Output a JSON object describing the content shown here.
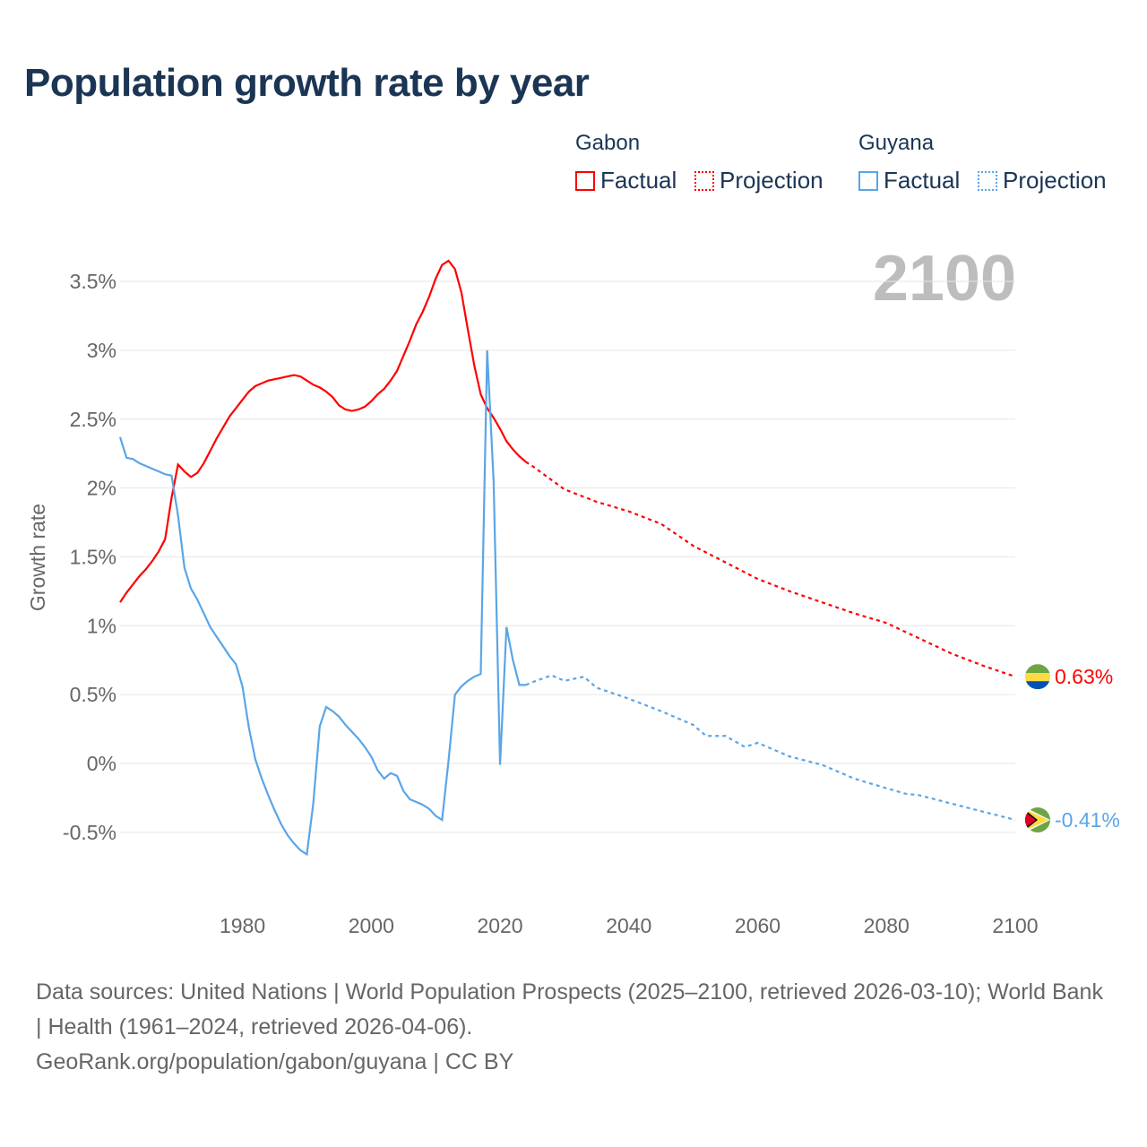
{
  "title": "Population growth rate by year",
  "legend": {
    "groups": [
      {
        "name": "Gabon",
        "factual": "Factual",
        "projection": "Projection",
        "color": "#ff0000"
      },
      {
        "name": "Guyana",
        "factual": "Factual",
        "projection": "Projection",
        "color": "#5aa5e8"
      }
    ]
  },
  "year_display": "2100",
  "footer": {
    "sources": "Data sources: United Nations | World Population Prospects (2025–2100, retrieved 2026-03-10); World Bank | Health (1961–2024, retrieved 2026-04-06).",
    "credit": "GeoRank.org/population/gabon/guyana | CC BY"
  },
  "chart_data": {
    "type": "line",
    "title": "Population growth rate by year",
    "xlabel": "",
    "ylabel": "Growth rate",
    "xlim": [
      1961,
      2100
    ],
    "ylim": [
      -0.8,
      3.7
    ],
    "x_ticks": [
      1980,
      2000,
      2020,
      2040,
      2060,
      2080,
      2100
    ],
    "x_tick_labels": [
      "1980",
      "2000",
      "2020",
      "2040",
      "2060",
      "2080",
      "2100"
    ],
    "y_ticks": [
      -0.5,
      0,
      0.5,
      1,
      1.5,
      2,
      2.5,
      3,
      3.5
    ],
    "y_tick_labels": [
      "-0.5%",
      "0%",
      "0.5%",
      "1%",
      "1.5%",
      "2%",
      "2.5%",
      "3%",
      "3.5%"
    ],
    "grid": true,
    "series": [
      {
        "name": "Gabon",
        "color": "#ff0000",
        "end_label": "0.63%",
        "factual": {
          "start": 1961,
          "values": [
            1.17,
            1.24,
            1.3,
            1.36,
            1.41,
            1.47,
            1.54,
            1.63,
            1.93,
            2.17,
            2.12,
            2.08,
            2.11,
            2.18,
            2.27,
            2.36,
            2.44,
            2.52,
            2.58,
            2.64,
            2.7,
            2.74,
            2.76,
            2.78,
            2.79,
            2.8,
            2.81,
            2.82,
            2.81,
            2.78,
            2.75,
            2.73,
            2.7,
            2.66,
            2.6,
            2.57,
            2.56,
            2.57,
            2.59,
            2.63,
            2.68,
            2.72,
            2.78,
            2.85,
            2.96,
            3.07,
            3.19,
            3.28,
            3.39,
            3.52,
            3.62,
            3.65,
            3.59,
            3.42,
            3.15,
            2.89,
            2.68,
            2.58,
            2.51,
            2.43,
            2.34,
            2.28,
            2.23,
            2.19
          ]
        },
        "projection": {
          "x": [
            2024,
            2025,
            2030,
            2035,
            2040,
            2045,
            2050,
            2055,
            2060,
            2065,
            2070,
            2075,
            2080,
            2085,
            2090,
            2095,
            2100
          ],
          "values": [
            2.19,
            2.16,
            1.99,
            1.9,
            1.83,
            1.74,
            1.58,
            1.46,
            1.34,
            1.25,
            1.17,
            1.09,
            1.02,
            0.91,
            0.8,
            0.71,
            0.63
          ]
        }
      },
      {
        "name": "Guyana",
        "color": "#5aa5e8",
        "end_label": "-0.41%",
        "factual": {
          "start": 1961,
          "values": [
            2.37,
            2.22,
            2.21,
            2.18,
            2.16,
            2.14,
            2.12,
            2.1,
            2.09,
            1.8,
            1.42,
            1.27,
            1.19,
            1.09,
            0.99,
            0.92,
            0.85,
            0.78,
            0.72,
            0.56,
            0.26,
            0.03,
            -0.11,
            -0.23,
            -0.34,
            -0.44,
            -0.52,
            -0.58,
            -0.63,
            -0.66,
            -0.29,
            0.27,
            0.41,
            0.38,
            0.34,
            0.28,
            0.23,
            0.18,
            0.12,
            0.05,
            -0.05,
            -0.11,
            -0.07,
            -0.09,
            -0.2,
            -0.26,
            -0.28,
            -0.3,
            -0.33,
            -0.38,
            -0.41,
            0.02,
            0.5,
            0.56,
            0.6,
            0.63,
            0.65,
            3.0,
            2.05,
            -0.01,
            0.99,
            0.75,
            0.57,
            0.57
          ]
        },
        "projection": {
          "x": [
            2024,
            2025,
            2028,
            2030,
            2033,
            2035,
            2040,
            2045,
            2050,
            2052,
            2055,
            2058,
            2060,
            2065,
            2070,
            2075,
            2080,
            2083,
            2085,
            2090,
            2095,
            2100
          ],
          "values": [
            0.57,
            0.59,
            0.64,
            0.6,
            0.63,
            0.55,
            0.47,
            0.38,
            0.28,
            0.2,
            0.2,
            0.12,
            0.15,
            0.05,
            -0.01,
            -0.11,
            -0.18,
            -0.22,
            -0.23,
            -0.29,
            -0.35,
            -0.41
          ]
        }
      }
    ]
  }
}
